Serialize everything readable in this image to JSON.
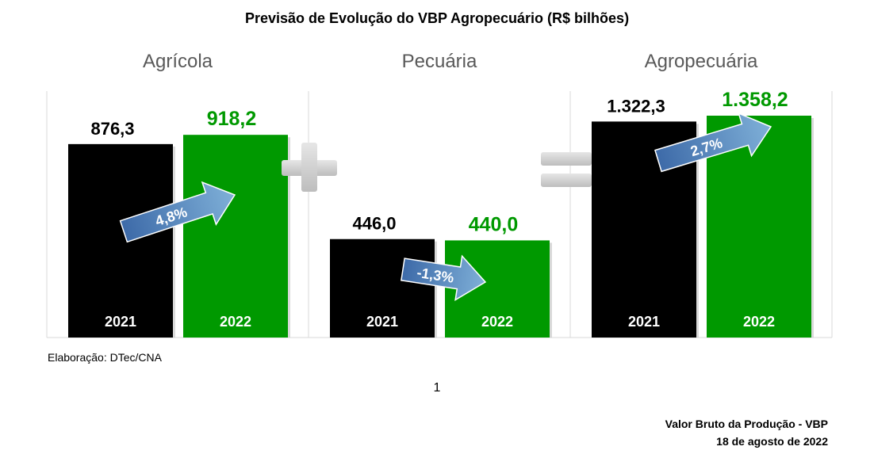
{
  "header": {
    "title": "Previsão de Evolução do VBP Agropecuário (R$ bilhões)"
  },
  "chart_data": {
    "type": "bar",
    "title": "Previsão de Evolução do VBP Agropecuário (R$ bilhões)",
    "panels": [
      {
        "name": "Agrícola",
        "categories": [
          "2021",
          "2022"
        ],
        "values": [
          876.3,
          918.2
        ],
        "value_labels": [
          "876,3",
          "918,2"
        ],
        "change_label": "4,8%",
        "ylim": [
          0,
          1000
        ]
      },
      {
        "name": "Pecuária",
        "categories": [
          "2021",
          "2022"
        ],
        "values": [
          446.0,
          440.0
        ],
        "value_labels": [
          "446,0",
          "440,0"
        ],
        "change_label": "-1,3%",
        "ylim": [
          0,
          1000
        ]
      },
      {
        "name": "Agropecuária",
        "categories": [
          "2021",
          "2022"
        ],
        "values": [
          1322.3,
          1358.2
        ],
        "value_labels": [
          "1.322,3",
          "1.358,2"
        ],
        "change_label": "2,7%",
        "ylim": [
          0,
          1500
        ]
      }
    ],
    "colors": {
      "2021": "#000000",
      "2022": "#009900",
      "arrow": "#4f81bd",
      "operator": "#cccccc"
    },
    "operators": [
      "+",
      "="
    ]
  },
  "credit": "Elaboração: DTec/CNA",
  "page_number": "1",
  "footer": {
    "line1": "Valor Bruto da Produção - VBP",
    "line2": "18 de agosto de 2022"
  }
}
